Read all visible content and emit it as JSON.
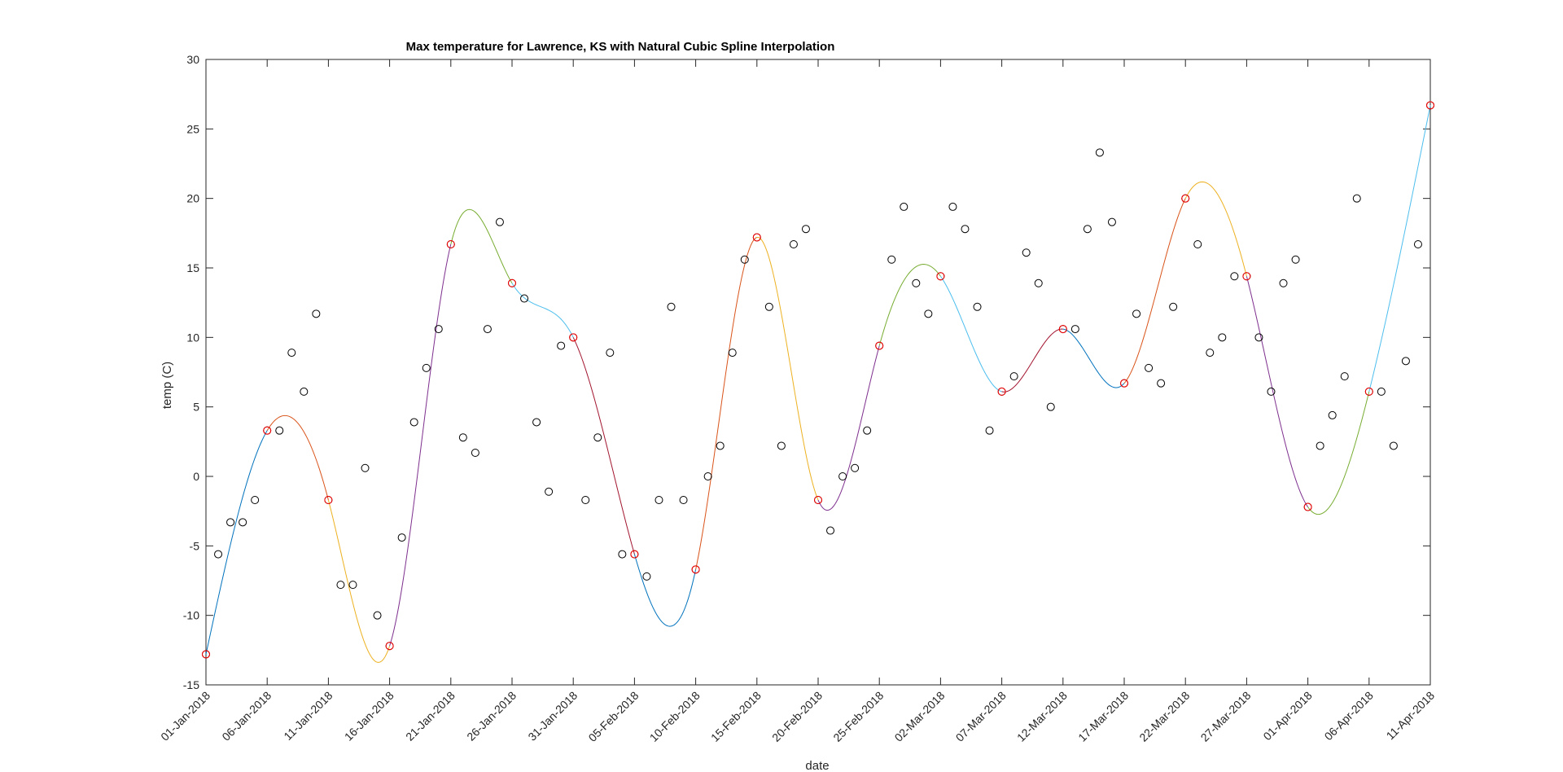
{
  "chart_data": {
    "type": "scatter",
    "title": "Max temperature for Lawrence, KS with Natural Cubic Spline Interpolation",
    "xlabel": "date",
    "ylabel": "temp (C)",
    "xlim": [
      "2018-01-01",
      "2018-04-11"
    ],
    "ylim": [
      -15,
      30
    ],
    "x_tick_labels": [
      "01-Jan-2018",
      "06-Jan-2018",
      "11-Jan-2018",
      "16-Jan-2018",
      "21-Jan-2018",
      "26-Jan-2018",
      "31-Jan-2018",
      "05-Feb-2018",
      "10-Feb-2018",
      "15-Feb-2018",
      "20-Feb-2018",
      "25-Feb-2018",
      "02-Mar-2018",
      "07-Mar-2018",
      "12-Mar-2018",
      "17-Mar-2018",
      "22-Mar-2018",
      "27-Mar-2018",
      "01-Apr-2018",
      "06-Apr-2018",
      "11-Apr-2018"
    ],
    "y_ticks": [
      -15,
      -10,
      -5,
      0,
      5,
      10,
      15,
      20,
      25,
      30
    ],
    "y_tick_labels": [
      "-15",
      "-10",
      "-5",
      "0",
      "5",
      "10",
      "15",
      "20",
      "25",
      "30"
    ],
    "grid": false,
    "observed": {
      "marker": "circle",
      "color": "#000000",
      "x": [
        "2018-01-01",
        "2018-01-02",
        "2018-01-03",
        "2018-01-04",
        "2018-01-05",
        "2018-01-06",
        "2018-01-07",
        "2018-01-08",
        "2018-01-09",
        "2018-01-10",
        "2018-01-11",
        "2018-01-12",
        "2018-01-13",
        "2018-01-14",
        "2018-01-15",
        "2018-01-16",
        "2018-01-17",
        "2018-01-18",
        "2018-01-19",
        "2018-01-20",
        "2018-01-21",
        "2018-01-22",
        "2018-01-23",
        "2018-01-24",
        "2018-01-25",
        "2018-01-26",
        "2018-01-27",
        "2018-01-28",
        "2018-01-29",
        "2018-01-30",
        "2018-01-31",
        "2018-02-01",
        "2018-02-02",
        "2018-02-03",
        "2018-02-04",
        "2018-02-05",
        "2018-02-06",
        "2018-02-07",
        "2018-02-08",
        "2018-02-09",
        "2018-02-10",
        "2018-02-11",
        "2018-02-12",
        "2018-02-13",
        "2018-02-14",
        "2018-02-15",
        "2018-02-16",
        "2018-02-17",
        "2018-02-18",
        "2018-02-19",
        "2018-02-20",
        "2018-02-21",
        "2018-02-22",
        "2018-02-23",
        "2018-02-24",
        "2018-02-25",
        "2018-02-26",
        "2018-02-27",
        "2018-02-28",
        "2018-03-01",
        "2018-03-02",
        "2018-03-03",
        "2018-03-04",
        "2018-03-05",
        "2018-03-06",
        "2018-03-07",
        "2018-03-08",
        "2018-03-09",
        "2018-03-10",
        "2018-03-11",
        "2018-03-12",
        "2018-03-13",
        "2018-03-14",
        "2018-03-15",
        "2018-03-16",
        "2018-03-17",
        "2018-03-18",
        "2018-03-19",
        "2018-03-20",
        "2018-03-21",
        "2018-03-22",
        "2018-03-23",
        "2018-03-24",
        "2018-03-25",
        "2018-03-26",
        "2018-03-27",
        "2018-03-28",
        "2018-03-29",
        "2018-03-30",
        "2018-03-31",
        "2018-04-01",
        "2018-04-02",
        "2018-04-03",
        "2018-04-04",
        "2018-04-05",
        "2018-04-06",
        "2018-04-07",
        "2018-04-08",
        "2018-04-09",
        "2018-04-10",
        "2018-04-11"
      ],
      "y": [
        -12.8,
        -5.6,
        -3.3,
        -3.3,
        -1.7,
        3.3,
        3.3,
        8.9,
        6.1,
        11.7,
        -1.7,
        -7.8,
        -7.8,
        0.6,
        -10,
        -12.2,
        -4.4,
        3.9,
        7.8,
        10.6,
        16.7,
        2.8,
        1.7,
        10.6,
        18.3,
        13.9,
        12.8,
        3.9,
        -1.1,
        9.4,
        10,
        -1.7,
        2.8,
        8.9,
        -5.6,
        -5.6,
        -7.2,
        -1.7,
        12.2,
        -1.7,
        -6.7,
        0,
        2.2,
        8.9,
        15.6,
        17.2,
        12.2,
        2.2,
        16.7,
        17.8,
        -1.7,
        -3.9,
        0,
        0.6,
        3.3,
        9.4,
        15.6,
        19.4,
        13.9,
        11.7,
        14.4,
        19.4,
        17.8,
        12.2,
        3.3,
        6.1,
        7.2,
        16.1,
        13.9,
        5,
        10.6,
        10.6,
        17.8,
        23.3,
        18.3,
        6.7,
        11.7,
        7.8,
        6.7,
        12.2,
        20,
        16.7,
        8.9,
        10,
        14.4,
        14.4,
        10,
        6.1,
        13.9,
        15.6,
        -2.2,
        2.2,
        4.4,
        7.2,
        20,
        6.1,
        6.1,
        2.2,
        8.3,
        16.7,
        26.7
      ]
    },
    "knots": {
      "marker": "circle",
      "color": "#ff0000",
      "x": [
        "2018-01-01",
        "2018-01-06",
        "2018-01-11",
        "2018-01-16",
        "2018-01-21",
        "2018-01-26",
        "2018-01-31",
        "2018-02-05",
        "2018-02-10",
        "2018-02-15",
        "2018-02-20",
        "2018-02-25",
        "2018-03-02",
        "2018-03-07",
        "2018-03-12",
        "2018-03-17",
        "2018-03-22",
        "2018-03-27",
        "2018-04-01",
        "2018-04-06",
        "2018-04-11"
      ],
      "y": [
        -12.8,
        3.3,
        -1.7,
        -12.2,
        16.7,
        13.9,
        10,
        -5.6,
        -6.7,
        17.2,
        -1.7,
        9.4,
        14.4,
        6.1,
        10.6,
        6.7,
        20,
        14.4,
        -2.2,
        6.1,
        26.7
      ]
    },
    "spline": {
      "interpolation": "natural cubic spline",
      "segment_colors": [
        "#0072bd",
        "#d95319",
        "#edb120",
        "#7e2f8e",
        "#77ac30",
        "#4dbeee",
        "#a2142f"
      ]
    }
  }
}
